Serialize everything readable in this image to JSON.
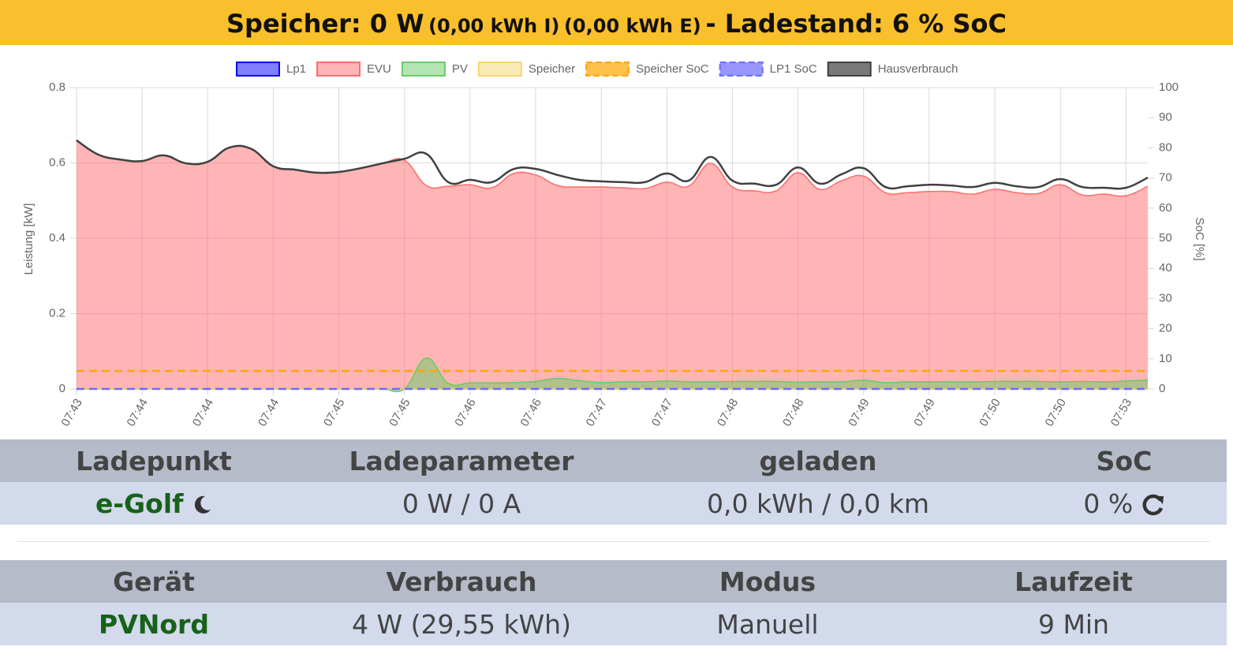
{
  "header": {
    "parts": [
      "Speicher: 0 W",
      "(0,00 kWh I)",
      "(0,00 kWh E)",
      "- Ladestand: 6 % SoC"
    ]
  },
  "chart_data": {
    "type": "line",
    "ylabel": "Leistung [kW]",
    "y2label": "SoC [%]",
    "legend": "top",
    "grid": true,
    "ylim": [
      0,
      0.8
    ],
    "yticks": [
      0,
      0.2,
      0.4,
      0.6,
      0.8
    ],
    "y2lim": [
      0,
      100
    ],
    "y2ticks": [
      0,
      10,
      20,
      30,
      40,
      50,
      60,
      70,
      80,
      90,
      100
    ],
    "categories": [
      "07:43",
      null,
      null,
      "07:44",
      null,
      null,
      "07:44",
      null,
      null,
      "07:44",
      null,
      null,
      "07:45",
      null,
      null,
      "07:45",
      null,
      null,
      "07:46",
      null,
      null,
      "07:46",
      null,
      null,
      "07:47",
      null,
      null,
      "07:47",
      null,
      null,
      "07:48",
      null,
      null,
      "07:48",
      null,
      null,
      "07:49",
      null,
      null,
      "07:49",
      null,
      null,
      "07:50",
      null,
      null,
      "07:50",
      null,
      null,
      "07:53",
      null
    ],
    "series": [
      {
        "name": "Lp1",
        "color": "#0000ff",
        "fill": true,
        "values": [
          0,
          0,
          0,
          0,
          0,
          0,
          0,
          0,
          0,
          0,
          0,
          0,
          0,
          0,
          0,
          0,
          0,
          0,
          0,
          0,
          0,
          0,
          0,
          0,
          0,
          0,
          0,
          0,
          0,
          0,
          0,
          0,
          0,
          0,
          0,
          0,
          0,
          0,
          0,
          0,
          0,
          0,
          0,
          0,
          0,
          0,
          0,
          0,
          0,
          0
        ]
      },
      {
        "name": "EVU",
        "color": "#ff6b6b",
        "fill": true,
        "values": [
          0.66,
          0.622,
          0.609,
          0.605,
          0.62,
          0.599,
          0.603,
          0.641,
          0.637,
          0.591,
          0.582,
          0.574,
          0.576,
          0.586,
          0.599,
          0.607,
          0.54,
          0.538,
          0.542,
          0.534,
          0.572,
          0.568,
          0.54,
          0.536,
          0.536,
          0.534,
          0.532,
          0.549,
          0.538,
          0.599,
          0.536,
          0.526,
          0.526,
          0.574,
          0.53,
          0.553,
          0.565,
          0.521,
          0.521,
          0.524,
          0.524,
          0.517,
          0.53,
          0.521,
          0.519,
          0.542,
          0.515,
          0.517,
          0.513,
          0.538
        ]
      },
      {
        "name": "PV",
        "color": "#66cc66",
        "fill": true,
        "values": [
          0,
          0,
          0,
          0,
          0,
          0,
          0,
          0,
          0,
          0,
          0,
          0,
          0,
          0,
          0,
          0,
          0.082,
          0.015,
          0.016,
          0.016,
          0.017,
          0.02,
          0.028,
          0.022,
          0.017,
          0.019,
          0.019,
          0.021,
          0.019,
          0.019,
          0.02,
          0.02,
          0.02,
          0.018,
          0.019,
          0.019,
          0.023,
          0.017,
          0.019,
          0.019,
          0.019,
          0.019,
          0.02,
          0.02,
          0.02,
          0.019,
          0.02,
          0.019,
          0.021,
          0.024
        ]
      },
      {
        "name": "Speicher",
        "color": "#f5d76e",
        "fill": true,
        "values": [
          0,
          0,
          0,
          0,
          0,
          0,
          0,
          0,
          0,
          0,
          0,
          0,
          0,
          0,
          0,
          0,
          0,
          0,
          0,
          0,
          0,
          0,
          0,
          0,
          0,
          0,
          0,
          0,
          0,
          0,
          0,
          0,
          0,
          0,
          0,
          0,
          0,
          0,
          0,
          0,
          0,
          0,
          0,
          0,
          0,
          0,
          0,
          0,
          0,
          0
        ]
      },
      {
        "name": "Speicher SoC",
        "color": "#ffa500",
        "dashed": true,
        "axis": "y2",
        "values": [
          6,
          6,
          6,
          6,
          6,
          6,
          6,
          6,
          6,
          6,
          6,
          6,
          6,
          6,
          6,
          6,
          6,
          6,
          6,
          6,
          6,
          6,
          6,
          6,
          6,
          6,
          6,
          6,
          6,
          6,
          6,
          6,
          6,
          6,
          6,
          6,
          6,
          6,
          6,
          6,
          6,
          6,
          6,
          6,
          6,
          6,
          6,
          6,
          6,
          6
        ]
      },
      {
        "name": "LP1 SoC",
        "color": "#6b6bff",
        "dashed": true,
        "axis": "y2",
        "values": [
          0,
          0,
          0,
          0,
          0,
          0,
          0,
          0,
          0,
          0,
          0,
          0,
          0,
          0,
          0,
          0,
          0,
          0,
          0,
          0,
          0,
          0,
          0,
          0,
          0,
          0,
          0,
          0,
          0,
          0,
          0,
          0,
          0,
          0,
          0,
          0,
          0,
          0,
          0,
          0,
          0,
          0,
          0,
          0,
          0,
          0,
          0,
          0,
          0,
          0
        ]
      },
      {
        "name": "Hausverbrauch",
        "color": "#404040",
        "values": [
          0.66,
          0.622,
          0.609,
          0.605,
          0.62,
          0.599,
          0.603,
          0.641,
          0.637,
          0.591,
          0.582,
          0.574,
          0.576,
          0.586,
          0.599,
          0.611,
          0.624,
          0.549,
          0.555,
          0.549,
          0.584,
          0.584,
          0.568,
          0.555,
          0.551,
          0.549,
          0.549,
          0.572,
          0.553,
          0.616,
          0.553,
          0.545,
          0.542,
          0.588,
          0.545,
          0.57,
          0.586,
          0.536,
          0.538,
          0.542,
          0.54,
          0.536,
          0.547,
          0.538,
          0.536,
          0.557,
          0.536,
          0.534,
          0.534,
          0.561
        ]
      }
    ]
  },
  "ladepunkt": {
    "headers": [
      "Ladepunkt",
      "Ladeparameter",
      "geladen",
      "SoC"
    ],
    "row": [
      "e-Golf",
      "0 W / 0 A",
      "0,0 kWh / 0,0 km",
      "0 %"
    ]
  },
  "geraete": {
    "headers": [
      "Gerät",
      "Verbrauch",
      "Modus",
      "Laufzeit"
    ],
    "row": [
      "PVNord",
      "4 W (29,55 kWh)",
      "Manuell",
      "9 Min"
    ]
  }
}
